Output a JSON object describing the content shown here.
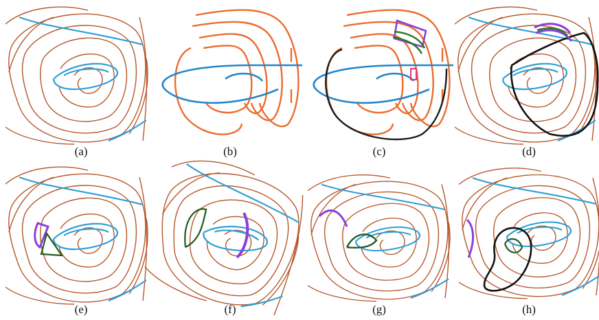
{
  "captions": [
    "(a)",
    "(b)",
    "(c)",
    "(d)",
    "(e)",
    "(f)",
    "(g)",
    "(h)"
  ]
}
